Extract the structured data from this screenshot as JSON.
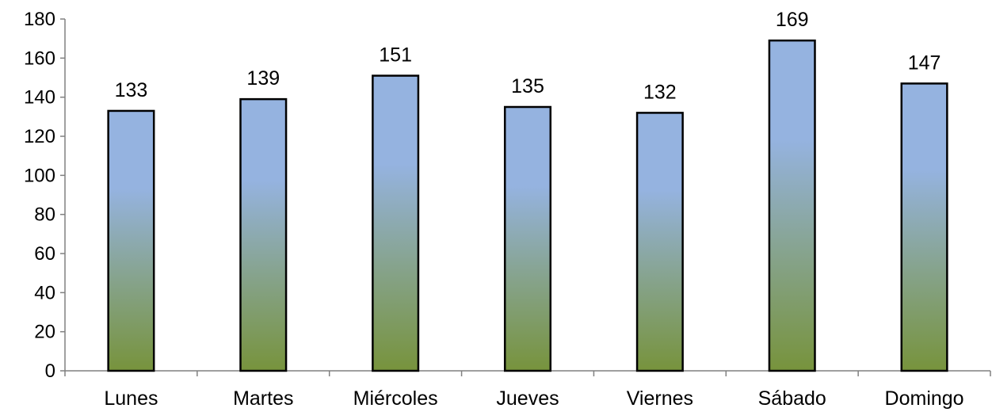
{
  "chart_data": {
    "type": "bar",
    "categories": [
      "Lunes",
      "Martes",
      "Miércoles",
      "Jueves",
      "Viernes",
      "Sábado",
      "Domingo"
    ],
    "values": [
      133,
      139,
      151,
      135,
      132,
      169,
      147
    ],
    "title": "",
    "xlabel": "",
    "ylabel": "",
    "ylim": [
      0,
      180
    ],
    "yticks": [
      0,
      20,
      40,
      60,
      80,
      100,
      120,
      140,
      160,
      180
    ],
    "grid": false,
    "legend": "none",
    "data_labels": true,
    "colors": {
      "bar_top": "#95b3e0",
      "bar_bottom": "#77933c",
      "bar_outline": "#000000",
      "axis": "#808080"
    }
  }
}
